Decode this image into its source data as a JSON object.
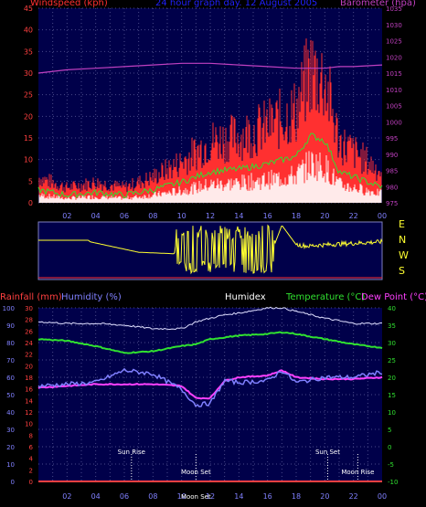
{
  "colors": {
    "wind": "#ff3030",
    "windAxis": "#ff4040",
    "barometer": "#c040c0",
    "title": "#2020ff",
    "humidity": "#8080ff",
    "rain": "#ff4040",
    "temp": "#30e030",
    "dew": "#ff40ff",
    "humidex": "#e0e0ff",
    "dirLine": "#ffff30",
    "grid": "#4a4a8a",
    "plotBg": "#00004a",
    "hourText": "#8080ff",
    "compass": "#ffff30",
    "white": "#ffffff"
  },
  "header": {
    "wind_label": "Windspeed (kph)",
    "title": "24 hour graph day. 12 August 2005",
    "baro_label": "Barometer (hpa)"
  },
  "header2": {
    "rain_label": "Rainfall (mm)",
    "humidity_label": "Humidity (%)",
    "humidex_label": "Humidex",
    "temp_label": "Temperature (°C)",
    "dew_label": "Dew Point (°C)"
  },
  "compass": [
    "E",
    "N",
    "W",
    "S"
  ],
  "astro": {
    "sun_rise": "Sun Rise",
    "sun_set": "Sun Set",
    "moon_set": "Moon Set",
    "moon_rise": "Moon Rise",
    "bottom_overlap": "Moon Set"
  },
  "hour_ticks": [
    "02",
    "04",
    "06",
    "08",
    "10",
    "12",
    "14",
    "16",
    "18",
    "20",
    "22",
    "00"
  ],
  "chart_data": [
    {
      "type": "line",
      "title": "24 hour graph day. 12 August 2005",
      "ylabel": "Windspeed (kph)",
      "ylabel_right": "Barometer (hpa)",
      "ylim": [
        0,
        45
      ],
      "ylim_right": [
        975,
        1035
      ],
      "y_ticks": [
        0,
        5,
        10,
        15,
        20,
        25,
        30,
        35,
        40,
        45
      ],
      "y_ticks_right": [
        975,
        980,
        985,
        990,
        995,
        1000,
        1005,
        1010,
        1015,
        1020,
        1025,
        1030,
        1035
      ],
      "x": [
        0,
        2,
        4,
        6,
        8,
        10,
        12,
        14,
        16,
        18,
        19,
        20,
        21,
        22,
        24
      ],
      "series": [
        {
          "name": "Windspeed (kph)",
          "values": [
            5,
            3,
            4,
            3,
            5,
            8,
            12,
            13,
            15,
            18,
            26,
            24,
            12,
            10,
            6
          ]
        },
        {
          "name": "Barometer (hpa)",
          "axis": "right",
          "values": [
            1015,
            1016,
            1016.5,
            1017,
            1017.5,
            1018,
            1018,
            1017.5,
            1017,
            1016.5,
            1016.5,
            1016.5,
            1017,
            1017,
            1017.5
          ]
        }
      ]
    },
    {
      "type": "line",
      "x": [
        0,
        3.5,
        3.6,
        7,
        9.5,
        9.6,
        15,
        16,
        17,
        18,
        19,
        19.1,
        21,
        24
      ],
      "series": [
        {
          "name": "Wind direction",
          "values": [
            250,
            250,
            240,
            170,
            160,
            230,
            300,
            100,
            350,
            220,
            210,
            215,
            225,
            240
          ]
        }
      ]
    },
    {
      "type": "line",
      "ylabel": "Rainfall (mm)",
      "ylabel2": "Humidity (%)",
      "ylabel_right": "Temperature (°C)",
      "ylim_rain": [
        0,
        30
      ],
      "ylim_humidity": [
        0,
        100
      ],
      "ylim_temp": [
        -10,
        40
      ],
      "rain_ticks": [
        0,
        2,
        4,
        6,
        8,
        10,
        12,
        14,
        16,
        18,
        20,
        22,
        24,
        26,
        28,
        30
      ],
      "humidity_ticks": [
        0,
        10,
        20,
        30,
        40,
        50,
        60,
        70,
        80,
        90,
        100
      ],
      "temp_ticks": [
        -10,
        -5,
        0,
        5,
        10,
        15,
        20,
        25,
        30,
        35,
        40
      ],
      "x": [
        0,
        2,
        4,
        6,
        8,
        10,
        11,
        12,
        13,
        14,
        16,
        17,
        18,
        20,
        22,
        24
      ],
      "series": [
        {
          "name": "Humidity (%)",
          "values": [
            55,
            56,
            57,
            64,
            62,
            53,
            44,
            45,
            58,
            57,
            58,
            64,
            57,
            60,
            60,
            63
          ]
        },
        {
          "name": "Temperature (°C)",
          "values": [
            31,
            30.5,
            29,
            27,
            27.5,
            29,
            29.5,
            31,
            31.5,
            32,
            32.5,
            33,
            32.5,
            31,
            29.5,
            28.5
          ]
        },
        {
          "name": "Dew Point (°C)",
          "values": [
            17,
            17.5,
            18,
            18,
            18,
            17.5,
            14,
            14,
            19,
            20,
            20.5,
            22,
            20,
            19.5,
            19.5,
            20
          ]
        },
        {
          "name": "Humidex",
          "values": [
            36,
            35.5,
            35.5,
            35,
            34,
            34,
            36,
            37,
            38,
            38.5,
            40,
            40,
            39,
            37,
            35.5,
            35.5
          ]
        },
        {
          "name": "Rainfall (mm)",
          "values": [
            0,
            0,
            0,
            0,
            0,
            0,
            0,
            0,
            0,
            0,
            0,
            0,
            0,
            0,
            0,
            0
          ]
        }
      ],
      "annotations": [
        {
          "label": "Sun Rise",
          "x": 6.5
        },
        {
          "label": "Moon Set",
          "x": 11
        },
        {
          "label": "Sun Set",
          "x": 20.2
        },
        {
          "label": "Moon Rise",
          "x": 22.3
        }
      ]
    }
  ]
}
